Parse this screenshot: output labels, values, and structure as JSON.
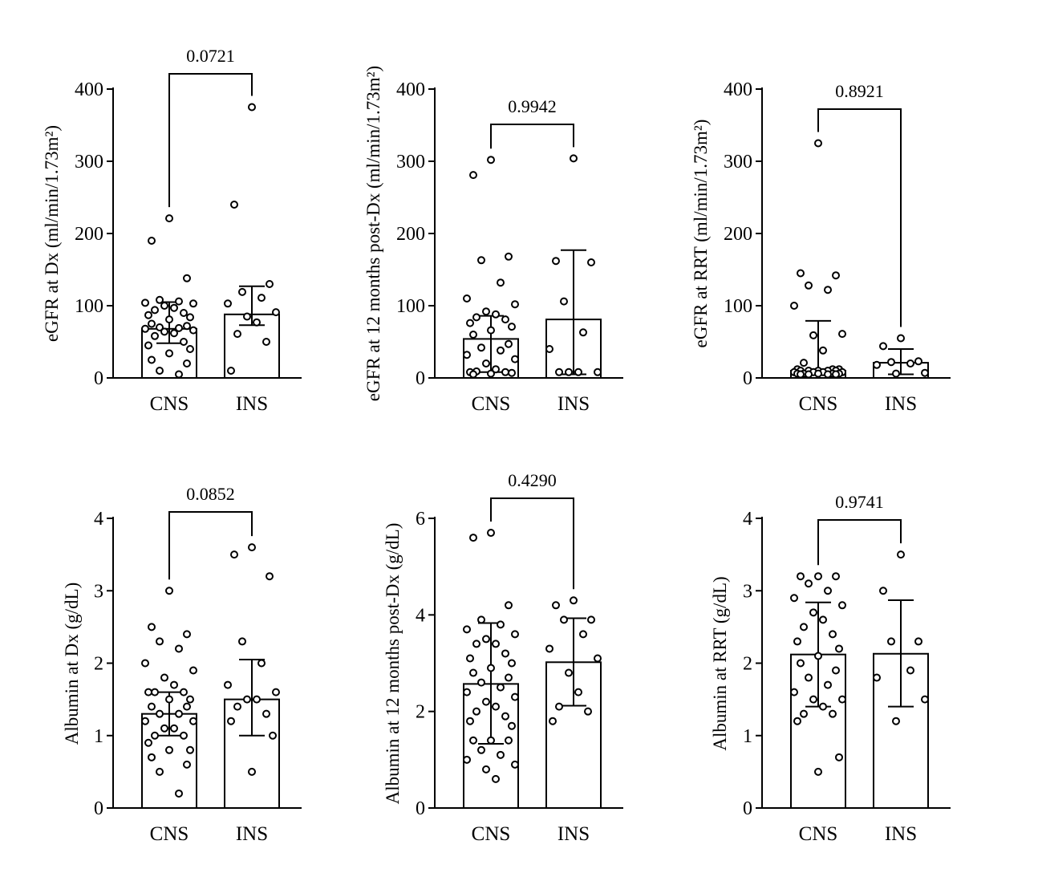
{
  "chart_data": [
    {
      "type": "bar",
      "ylabel": "eGFR at Dx (ml/min/1.73m²)",
      "categories": [
        "CNS",
        "INS"
      ],
      "ylim": [
        0,
        400
      ],
      "yticks": [
        0,
        100,
        200,
        300,
        400
      ],
      "p_value": "0.0721",
      "series": [
        {
          "mean": 68,
          "err_low": 48,
          "err_high": 105,
          "points": [
            221,
            190,
            138,
            108,
            106,
            104,
            103,
            100,
            97,
            94,
            90,
            87,
            84,
            81,
            75,
            72,
            70,
            69,
            68,
            66,
            64,
            62,
            58,
            50,
            45,
            40,
            34,
            25,
            20,
            10,
            5
          ]
        },
        {
          "mean": 88,
          "err_low": 73,
          "err_high": 127,
          "points": [
            375,
            240,
            130,
            119,
            111,
            103,
            91,
            85,
            77,
            61,
            50,
            10
          ]
        }
      ]
    },
    {
      "type": "bar",
      "ylabel": "eGFR at 12 months post-Dx (ml/min/1.73m²)",
      "categories": [
        "CNS",
        "INS"
      ],
      "ylim": [
        0,
        400
      ],
      "yticks": [
        0,
        100,
        200,
        300,
        400
      ],
      "p_value": "0.9942",
      "series": [
        {
          "mean": 54,
          "err_low": 8,
          "err_high": 86,
          "points": [
            302,
            281,
            168,
            163,
            132,
            110,
            102,
            92,
            88,
            84,
            81,
            76,
            71,
            66,
            60,
            47,
            42,
            38,
            32,
            26,
            20,
            12,
            9,
            8,
            8,
            7,
            6,
            5
          ]
        },
        {
          "mean": 81,
          "err_low": 5,
          "err_high": 177,
          "points": [
            304,
            162,
            160,
            106,
            63,
            40,
            8,
            8,
            8,
            8
          ]
        }
      ]
    },
    {
      "type": "bar",
      "ylabel": "eGFR at RRT (ml/min/1.73m²)",
      "categories": [
        "CNS",
        "INS"
      ],
      "ylim": [
        0,
        400
      ],
      "yticks": [
        0,
        100,
        200,
        300,
        400
      ],
      "p_value": "0.8921",
      "series": [
        {
          "mean": 10,
          "err_low": 5,
          "err_high": 79,
          "points": [
            325,
            145,
            142,
            128,
            122,
            100,
            61,
            59,
            38,
            21,
            12,
            12,
            12,
            10,
            10,
            10,
            10,
            10,
            8,
            8,
            8,
            8,
            6,
            6,
            6,
            6,
            6,
            5,
            5,
            5,
            5
          ]
        },
        {
          "mean": 21,
          "err_low": 5,
          "err_high": 40,
          "points": [
            55,
            44,
            23,
            22,
            20,
            18,
            7,
            6
          ]
        }
      ]
    },
    {
      "type": "bar",
      "ylabel": "Albumin at Dx (g/dL)",
      "categories": [
        "CNS",
        "INS"
      ],
      "ylim": [
        0,
        4
      ],
      "yticks": [
        0,
        1,
        2,
        3,
        4
      ],
      "p_value": "0.0852",
      "series": [
        {
          "mean": 1.3,
          "err_low": 1.0,
          "err_high": 1.6,
          "points": [
            3.0,
            2.5,
            2.4,
            2.3,
            2.2,
            2.0,
            1.9,
            1.8,
            1.7,
            1.6,
            1.6,
            1.6,
            1.5,
            1.5,
            1.4,
            1.4,
            1.3,
            1.3,
            1.2,
            1.2,
            1.1,
            1.1,
            1.0,
            1.0,
            0.9,
            0.8,
            0.8,
            0.7,
            0.6,
            0.5,
            0.2
          ]
        },
        {
          "mean": 1.5,
          "err_low": 1.0,
          "err_high": 2.05,
          "points": [
            3.6,
            3.5,
            3.2,
            2.3,
            2.0,
            1.7,
            1.6,
            1.5,
            1.5,
            1.4,
            1.3,
            1.2,
            1.0,
            0.5
          ]
        }
      ]
    },
    {
      "type": "bar",
      "ylabel": "Albumin at 12 months post-Dx (g/dL)",
      "categories": [
        "CNS",
        "INS"
      ],
      "ylim": [
        0,
        6
      ],
      "yticks": [
        0,
        2,
        4,
        6
      ],
      "p_value": "0.4290",
      "series": [
        {
          "mean": 2.57,
          "err_low": 1.33,
          "err_high": 3.83,
          "points": [
            5.7,
            5.6,
            4.2,
            3.9,
            3.8,
            3.7,
            3.6,
            3.5,
            3.4,
            3.4,
            3.2,
            3.1,
            3.0,
            2.9,
            2.8,
            2.7,
            2.6,
            2.5,
            2.4,
            2.3,
            2.2,
            2.1,
            2.0,
            1.9,
            1.8,
            1.7,
            1.4,
            1.4,
            1.4,
            1.2,
            1.1,
            1.0,
            0.9,
            0.8,
            0.6
          ]
        },
        {
          "mean": 3.02,
          "err_low": 2.12,
          "err_high": 3.93,
          "points": [
            4.3,
            4.2,
            3.9,
            3.9,
            3.6,
            3.3,
            3.1,
            2.8,
            2.4,
            2.1,
            2.0,
            1.8
          ]
        }
      ]
    },
    {
      "type": "bar",
      "ylabel": "Albumin at RRT (g/dL)",
      "categories": [
        "CNS",
        "INS"
      ],
      "ylim": [
        0,
        4
      ],
      "yticks": [
        0,
        1,
        2,
        3,
        4
      ],
      "p_value": "0.9741",
      "series": [
        {
          "mean": 2.12,
          "err_low": 1.4,
          "err_high": 2.84,
          "points": [
            3.2,
            3.2,
            3.2,
            3.1,
            3.0,
            2.9,
            2.8,
            2.7,
            2.6,
            2.5,
            2.4,
            2.3,
            2.2,
            2.1,
            2.0,
            1.9,
            1.8,
            1.7,
            1.6,
            1.5,
            1.5,
            1.4,
            1.3,
            1.3,
            1.2,
            0.7,
            0.5
          ]
        },
        {
          "mean": 2.13,
          "err_low": 1.4,
          "err_high": 2.87,
          "points": [
            3.5,
            3.0,
            2.3,
            2.3,
            1.9,
            1.8,
            1.5,
            1.2
          ]
        }
      ]
    }
  ]
}
